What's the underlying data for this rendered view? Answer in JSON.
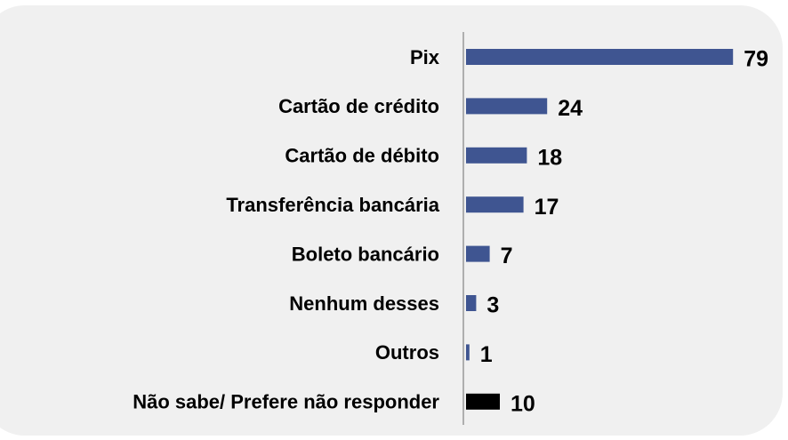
{
  "chart_data": {
    "type": "barh",
    "categories": [
      "Pix",
      "Cartão de crédito",
      "Cartão de débito",
      "Transferência bancária",
      "Boleto bancário",
      "Nenhum desses",
      "Outros",
      "Não sabe/ Prefere não responder"
    ],
    "values": [
      79,
      24,
      18,
      17,
      7,
      3,
      1,
      10
    ],
    "colors": [
      "#3f5591",
      "#3f5591",
      "#3f5591",
      "#3f5591",
      "#3f5591",
      "#3f5591",
      "#3f5591",
      "#000000"
    ]
  }
}
